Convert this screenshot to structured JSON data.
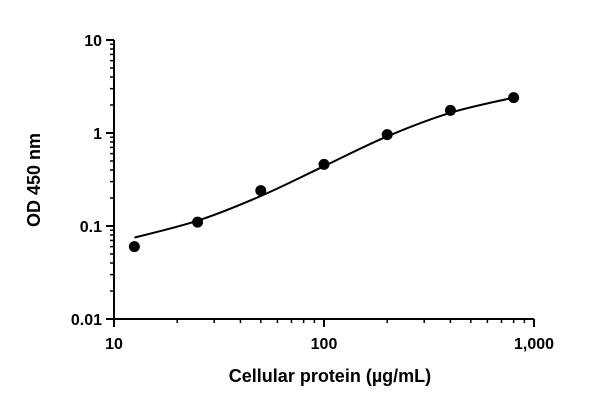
{
  "chart_data": {
    "type": "scatter",
    "title": "",
    "xlabel": "Cellular protein (µg/mL)",
    "ylabel": "OD 450 nm",
    "x_scale": "log",
    "y_scale": "log",
    "xlim": [
      10,
      1000
    ],
    "ylim": [
      0.01,
      10
    ],
    "x_ticks": [
      {
        "value": 10,
        "label": "10"
      },
      {
        "value": 100,
        "label": "100"
      },
      {
        "value": 1000,
        "label": "1,000"
      }
    ],
    "y_ticks": [
      {
        "value": 0.01,
        "label": "0.01"
      },
      {
        "value": 0.1,
        "label": "0.1"
      },
      {
        "value": 1,
        "label": "1"
      },
      {
        "value": 10,
        "label": "10"
      }
    ],
    "minor_ticks": true,
    "grid": false,
    "legend": "none",
    "series": [
      {
        "points": [
          {
            "x": 12.5,
            "y": 0.06
          },
          {
            "x": 25,
            "y": 0.11
          },
          {
            "x": 50,
            "y": 0.24
          },
          {
            "x": 100,
            "y": 0.46
          },
          {
            "x": 200,
            "y": 0.96
          },
          {
            "x": 400,
            "y": 1.75
          },
          {
            "x": 800,
            "y": 2.4
          }
        ],
        "fit_curve": [
          {
            "x": 12.5,
            "y": 0.075
          },
          {
            "x": 25,
            "y": 0.114
          },
          {
            "x": 50,
            "y": 0.21
          },
          {
            "x": 100,
            "y": 0.44
          },
          {
            "x": 200,
            "y": 0.92
          },
          {
            "x": 400,
            "y": 1.65
          },
          {
            "x": 800,
            "y": 2.4
          }
        ]
      }
    ],
    "colors": {
      "marker": "#000000",
      "curve": "#000000",
      "axis": "#000000"
    }
  }
}
